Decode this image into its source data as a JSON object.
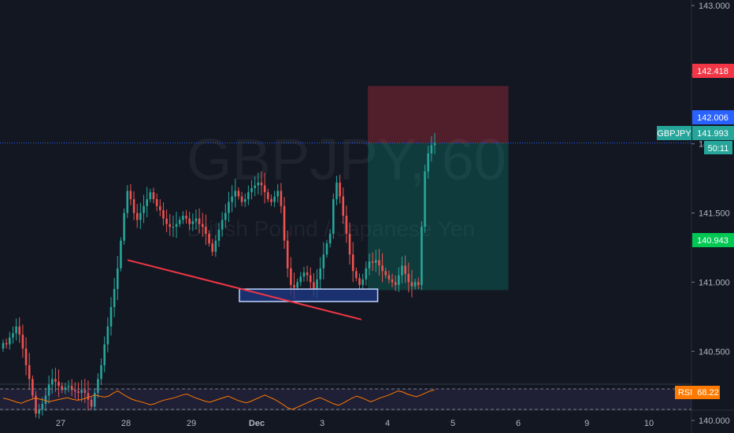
{
  "chart_data": {
    "type": "candlestick",
    "title": "GBPJPY, 60",
    "subtitle": "British Pound / Japanese Yen",
    "symbol": "GBPJPY",
    "timeframe": "60",
    "y_axis": {
      "ylim": [
        139.9,
        143.05
      ],
      "ticks": [
        "143.000",
        "142.500",
        "142.000",
        "141.500",
        "141.000",
        "140.500",
        "140.000"
      ],
      "position": "right"
    },
    "x_axis": {
      "ticks": [
        "27",
        "28",
        "29",
        "Dec",
        "3",
        "4",
        "5",
        "6",
        "9",
        "10"
      ]
    },
    "price_labels": {
      "stop": {
        "value": "142.418",
        "color": "#f23645"
      },
      "last": {
        "value": "142.006",
        "color": "#2962ff"
      },
      "symbol_price": {
        "label": "GBPJPY",
        "value": "141.993",
        "color": "#26a69a"
      },
      "countdown": {
        "value": "50:11",
        "color": "#26a69a"
      },
      "target": {
        "value": "140.943",
        "color": "#00c853"
      }
    },
    "close_series": [
      140.56,
      140.55,
      140.6,
      140.63,
      140.68,
      140.62,
      140.52,
      140.4,
      140.3,
      140.18,
      140.05,
      140.08,
      140.12,
      140.18,
      140.26,
      140.3,
      140.28,
      140.25,
      140.22,
      140.24,
      140.25,
      140.22,
      140.21,
      140.2,
      140.22,
      140.2,
      140.15,
      140.1,
      140.2,
      140.3,
      140.4,
      140.55,
      140.68,
      140.82,
      140.95,
      141.1,
      141.3,
      141.5,
      141.66,
      141.6,
      141.5,
      141.45,
      141.5,
      141.55,
      141.6,
      141.65,
      141.6,
      141.55,
      141.52,
      141.46,
      141.42,
      141.4,
      141.4,
      141.42,
      141.45,
      141.48,
      141.46,
      141.42,
      141.44,
      141.46,
      141.42,
      141.4,
      141.35,
      141.28,
      141.22,
      141.3,
      141.38,
      141.45,
      141.5,
      141.58,
      141.62,
      141.66,
      141.62,
      141.58,
      141.6,
      141.65,
      141.68,
      141.7,
      141.72,
      141.7,
      141.65,
      141.6,
      141.58,
      141.62,
      141.66,
      141.55,
      141.3,
      141.1,
      140.98,
      140.96,
      141.0,
      141.04,
      141.07,
      141.05,
      141.0,
      140.95,
      141.02,
      141.1,
      141.2,
      141.28,
      141.35,
      141.6,
      141.72,
      141.62,
      141.48,
      141.35,
      141.2,
      141.08,
      141.03,
      140.98,
      141.02,
      141.1,
      141.15,
      141.14,
      141.16,
      141.12,
      141.08,
      141.05,
      141.02,
      141.0,
      140.98,
      141.05,
      141.12,
      141.06,
      141.0,
      140.97,
      141.0,
      140.98,
      141.4,
      141.8,
      141.93,
      141.99,
      142.006
    ],
    "annotations": {
      "trendline": {
        "from": [
          1,
          141.16
        ],
        "to": [
          4.6,
          140.73
        ],
        "color": "#f23645"
      },
      "support_zone": {
        "from_day": 3.0,
        "to_day": 4.85,
        "top": 140.95,
        "bottom": 140.86,
        "color": "#2962ff"
      },
      "short_position": {
        "from_day": 4.7,
        "to_day": 6.85,
        "entry": 142.006,
        "stop": 142.418,
        "target": 140.943
      }
    }
  },
  "rsi": {
    "label": "RSI",
    "value": "68.22",
    "color": "#ff7a00",
    "upper": 70,
    "lower": 30,
    "values": [
      52,
      50,
      47,
      44,
      42,
      46,
      49,
      52,
      50,
      48,
      45,
      47,
      49,
      51,
      53,
      50,
      48,
      49,
      52,
      55,
      58,
      56,
      54,
      56,
      62,
      66,
      60,
      55,
      50,
      47,
      45,
      42,
      39,
      41,
      45,
      48,
      50,
      52,
      55,
      58,
      60,
      56,
      52,
      49,
      46,
      44,
      47,
      50,
      53,
      56,
      52,
      48,
      45,
      43,
      46,
      50,
      54,
      58,
      54,
      50,
      45,
      39,
      33,
      30,
      34,
      38,
      42,
      46,
      50,
      53,
      49,
      45,
      41,
      38,
      42,
      47,
      52,
      56,
      53,
      49,
      45,
      48,
      52,
      55,
      58,
      62,
      66,
      64,
      60,
      57,
      55,
      58,
      62,
      66,
      68.22
    ]
  }
}
